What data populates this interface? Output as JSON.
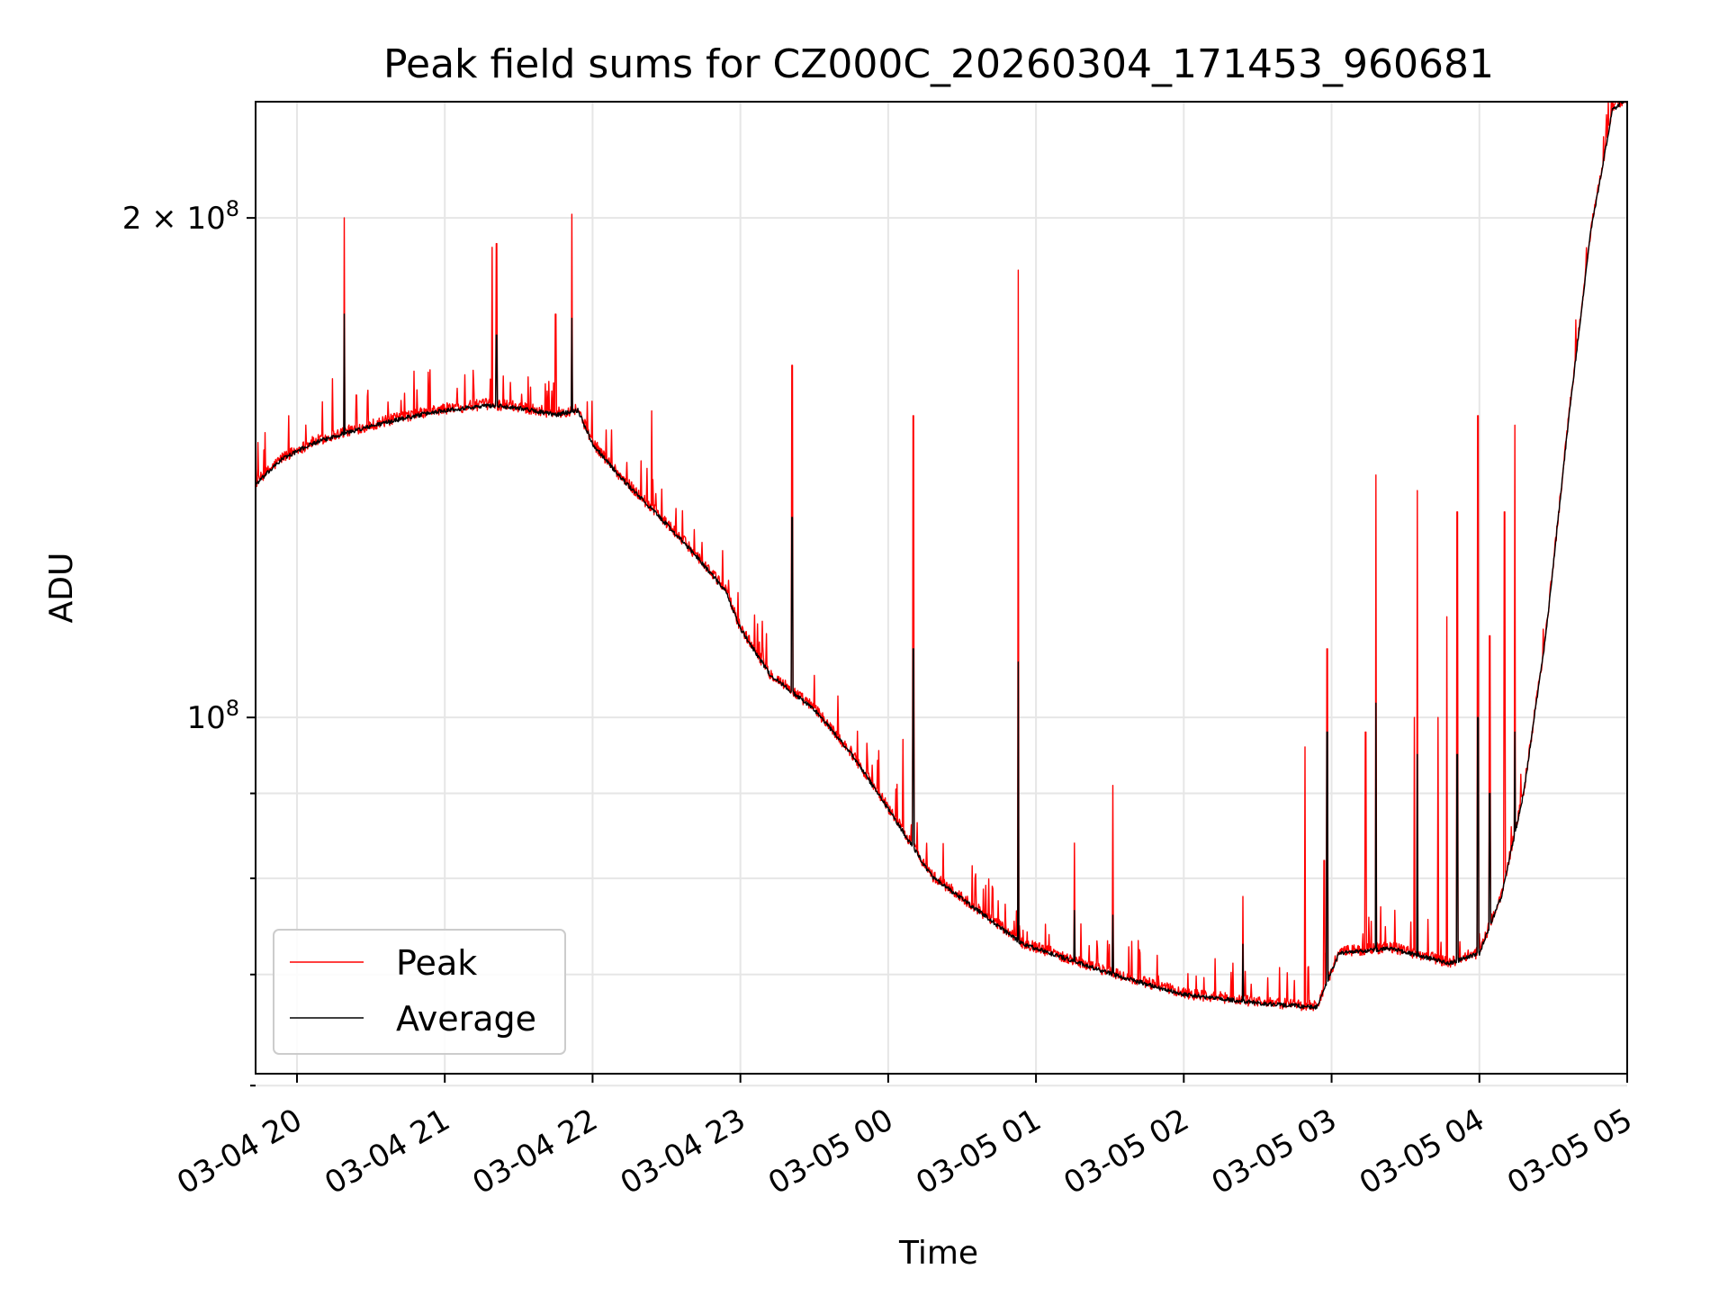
{
  "chart_data": {
    "type": "line",
    "title": "Peak field sums for CZ000C_20260304_171453_960681",
    "xlabel": "Time",
    "ylabel": "ADU",
    "x_unit": "hours since 03-04 00:00",
    "xlim": [
      19.72,
      29.0
    ],
    "ylim": [
      61000000,
      235000000
    ],
    "y_scale": "log",
    "grid": true,
    "legend_position": "bottom-left",
    "x_ticks": [
      {
        "value": 20,
        "label": "03-04 20"
      },
      {
        "value": 21,
        "label": "03-04 21"
      },
      {
        "value": 22,
        "label": "03-04 22"
      },
      {
        "value": 23,
        "label": "03-04 23"
      },
      {
        "value": 24,
        "label": "03-05 00"
      },
      {
        "value": 25,
        "label": "03-05 01"
      },
      {
        "value": 26,
        "label": "03-05 02"
      },
      {
        "value": 27,
        "label": "03-05 03"
      },
      {
        "value": 28,
        "label": "03-05 04"
      },
      {
        "value": 29,
        "label": "03-05 05"
      }
    ],
    "y_major_ticks": [
      {
        "value": 100000000,
        "base": "10",
        "exp": "8",
        "mantissa": ""
      },
      {
        "value": 200000000,
        "base": "10",
        "exp": "8",
        "mantissa": "2 × "
      }
    ],
    "y_minor_ticks": [
      60000000,
      70000000,
      80000000,
      90000000
    ],
    "baseline": [
      [
        19.72,
        138000000
      ],
      [
        19.9,
        143000000
      ],
      [
        20.1,
        146000000
      ],
      [
        20.3,
        148000000
      ],
      [
        20.55,
        150000000
      ],
      [
        20.75,
        151500000
      ],
      [
        21.0,
        153000000
      ],
      [
        21.3,
        154000000
      ],
      [
        21.5,
        153500000
      ],
      [
        21.75,
        152000000
      ],
      [
        21.9,
        153000000
      ],
      [
        22.0,
        146000000
      ],
      [
        22.2,
        139000000
      ],
      [
        22.45,
        132000000
      ],
      [
        22.7,
        125000000
      ],
      [
        22.9,
        119000000
      ],
      [
        23.0,
        113000000
      ],
      [
        23.2,
        106000000
      ],
      [
        23.5,
        101000000
      ],
      [
        23.75,
        95000000
      ],
      [
        24.0,
        88000000
      ],
      [
        24.3,
        80000000
      ],
      [
        24.6,
        76500000
      ],
      [
        24.9,
        73000000
      ],
      [
        25.2,
        71500000
      ],
      [
        25.5,
        70000000
      ],
      [
        26.0,
        68000000
      ],
      [
        26.5,
        67200000
      ],
      [
        26.9,
        66800000
      ],
      [
        27.05,
        72000000
      ],
      [
        27.4,
        72500000
      ],
      [
        27.8,
        71000000
      ],
      [
        28.0,
        72000000
      ],
      [
        28.15,
        78000000
      ],
      [
        28.3,
        90000000
      ],
      [
        28.45,
        112000000
      ],
      [
        28.6,
        150000000
      ],
      [
        28.75,
        195000000
      ],
      [
        28.9,
        232000000
      ],
      [
        29.0,
        236000000
      ]
    ],
    "series": [
      {
        "name": "Peak",
        "color": "#ff0000",
        "noise": 0.008,
        "spikes": [
          [
            20.32,
            200000000
          ],
          [
            20.24,
            160000000
          ],
          [
            20.9,
            162000000
          ],
          [
            21.32,
            192000000
          ],
          [
            21.35,
            193000000
          ],
          [
            21.75,
            175000000
          ],
          [
            21.86,
            201000000
          ],
          [
            22.4,
            153000000
          ],
          [
            23.35,
            163000000
          ],
          [
            23.3,
            104000000
          ],
          [
            24.17,
            152000000
          ],
          [
            24.1,
            97000000
          ],
          [
            24.88,
            186000000
          ],
          [
            25.26,
            84000000
          ],
          [
            25.52,
            91000000
          ],
          [
            26.4,
            78000000
          ],
          [
            26.82,
            96000000
          ],
          [
            26.95,
            82000000
          ],
          [
            26.97,
            110000000
          ],
          [
            27.23,
            98000000
          ],
          [
            27.3,
            140000000
          ],
          [
            27.58,
            137000000
          ],
          [
            27.56,
            100000000
          ],
          [
            27.72,
            100000000
          ],
          [
            27.78,
            115000000
          ],
          [
            27.85,
            133000000
          ],
          [
            27.99,
            152000000
          ],
          [
            28.07,
            112000000
          ],
          [
            28.17,
            133000000
          ],
          [
            28.24,
            150000000
          ]
        ]
      },
      {
        "name": "Average",
        "color": "#000000",
        "noise": 0.003,
        "spikes": [
          [
            20.32,
            175000000
          ],
          [
            21.35,
            170000000
          ],
          [
            21.86,
            174000000
          ],
          [
            23.35,
            132000000
          ],
          [
            24.17,
            110000000
          ],
          [
            24.88,
            108000000
          ],
          [
            25.26,
            76500000
          ],
          [
            25.52,
            76000000
          ],
          [
            26.4,
            73000000
          ],
          [
            26.97,
            98000000
          ],
          [
            27.3,
            102000000
          ],
          [
            27.58,
            95000000
          ],
          [
            27.85,
            95000000
          ],
          [
            27.99,
            100000000
          ],
          [
            28.07,
            90000000
          ],
          [
            28.24,
            98000000
          ]
        ]
      }
    ]
  }
}
